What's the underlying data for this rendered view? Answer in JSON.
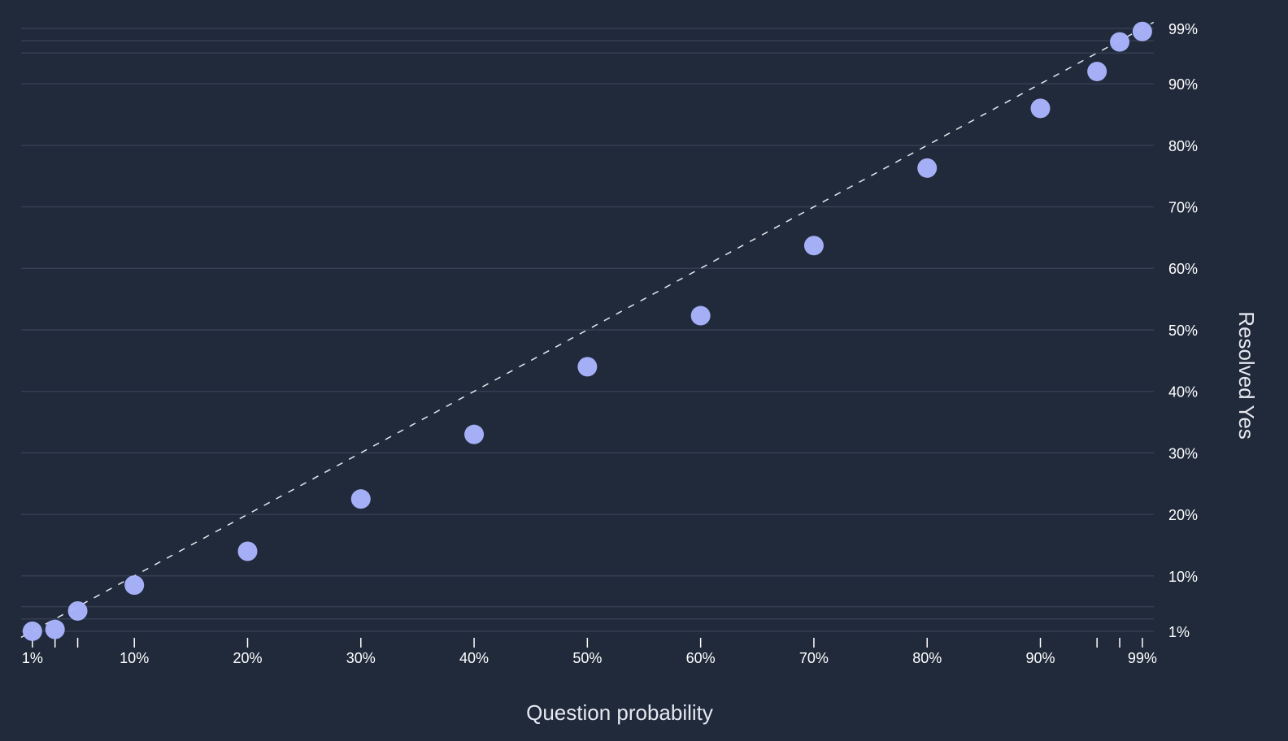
{
  "chart_data": {
    "type": "scatter",
    "title": "",
    "xlabel": "Question probability",
    "ylabel": "Resolved Yes",
    "xlim": [
      0,
      100
    ],
    "ylim": [
      0,
      100
    ],
    "x_ticks": [
      {
        "value": 1,
        "label": "1%"
      },
      {
        "value": 3,
        "label": ""
      },
      {
        "value": 5,
        "label": ""
      },
      {
        "value": 10,
        "label": "10%"
      },
      {
        "value": 20,
        "label": "20%"
      },
      {
        "value": 30,
        "label": "30%"
      },
      {
        "value": 40,
        "label": "40%"
      },
      {
        "value": 50,
        "label": "50%"
      },
      {
        "value": 60,
        "label": "60%"
      },
      {
        "value": 70,
        "label": "70%"
      },
      {
        "value": 80,
        "label": "80%"
      },
      {
        "value": 90,
        "label": "90%"
      },
      {
        "value": 95,
        "label": ""
      },
      {
        "value": 97,
        "label": ""
      },
      {
        "value": 99,
        "label": "99%"
      }
    ],
    "y_ticks": [
      {
        "value": 1,
        "label": "1%"
      },
      {
        "value": 3,
        "label": ""
      },
      {
        "value": 5,
        "label": ""
      },
      {
        "value": 10,
        "label": "10%"
      },
      {
        "value": 20,
        "label": "20%"
      },
      {
        "value": 30,
        "label": "30%"
      },
      {
        "value": 40,
        "label": "40%"
      },
      {
        "value": 50,
        "label": "50%"
      },
      {
        "value": 60,
        "label": "60%"
      },
      {
        "value": 70,
        "label": "70%"
      },
      {
        "value": 80,
        "label": "80%"
      },
      {
        "value": 90,
        "label": "90%"
      },
      {
        "value": 95,
        "label": ""
      },
      {
        "value": 97,
        "label": ""
      },
      {
        "value": 99,
        "label": "99%"
      }
    ],
    "grid": "horizontal",
    "y_axis_side": "right",
    "reference_line": {
      "from": [
        0,
        0
      ],
      "to": [
        100,
        100
      ],
      "style": "dashed"
    },
    "points": [
      {
        "x": 1,
        "y": 1
      },
      {
        "x": 3,
        "y": 1.3
      },
      {
        "x": 5,
        "y": 4.3
      },
      {
        "x": 10,
        "y": 8.5
      },
      {
        "x": 20,
        "y": 14
      },
      {
        "x": 30,
        "y": 22.5
      },
      {
        "x": 40,
        "y": 33
      },
      {
        "x": 50,
        "y": 44
      },
      {
        "x": 60,
        "y": 52.3
      },
      {
        "x": 70,
        "y": 63.7
      },
      {
        "x": 80,
        "y": 76.3
      },
      {
        "x": 90,
        "y": 86
      },
      {
        "x": 95,
        "y": 92
      },
      {
        "x": 97,
        "y": 96.8
      },
      {
        "x": 99,
        "y": 98.5
      }
    ],
    "colors": {
      "background": "#202a3b",
      "point": "#a9b4fb",
      "grid": "#363f52",
      "reference_line": "#e6e8f0",
      "tick": "#ffffff"
    }
  }
}
